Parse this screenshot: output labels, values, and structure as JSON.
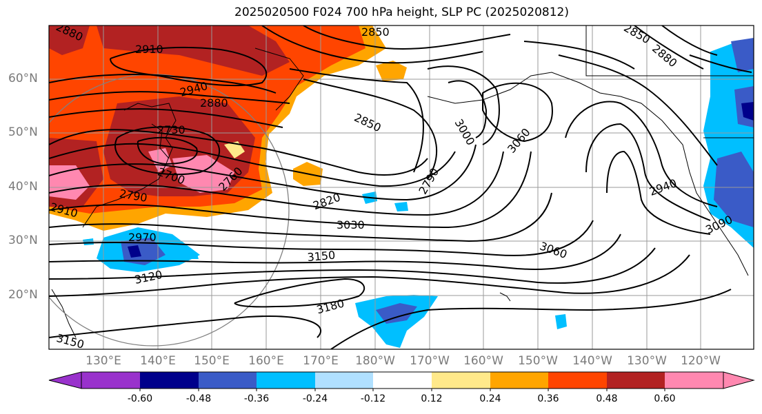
{
  "title": "2025020500 F024 700 hPa height, SLP PC (2025020812)",
  "lat_labels": [
    "60°N",
    "50°N",
    "40°N",
    "30°N",
    "20°N"
  ],
  "lon_labels": [
    "130°E",
    "140°E",
    "150°E",
    "160°E",
    "170°E",
    "180°W",
    "170°W",
    "160°W",
    "150°W",
    "140°W",
    "130°W",
    "120°W"
  ],
  "colorbar": {
    "tick_labels": [
      "-0.60",
      "-0.48",
      "-0.36",
      "-0.24",
      "-0.12",
      "0.12",
      "0.24",
      "0.36",
      "0.48",
      "0.60"
    ],
    "colors": [
      "#9932cc",
      "#00008b",
      "#3a5bc7",
      "#00bfff",
      "#b0e0ff",
      "#ffffff",
      "#ffe98a",
      "#ffa500",
      "#ff4500",
      "#b22222",
      "#ff88b0"
    ]
  },
  "contour_labels": [
    "2880",
    "2910",
    "2940",
    "2880",
    "2730",
    "2700",
    "2760",
    "2790",
    "2910",
    "2970",
    "3120",
    "3150",
    "3180",
    "2850",
    "2820",
    "3030",
    "2790",
    "3000",
    "3060",
    "3060",
    "2940",
    "3090",
    "2850",
    "2850",
    "2880",
    "3150"
  ]
}
